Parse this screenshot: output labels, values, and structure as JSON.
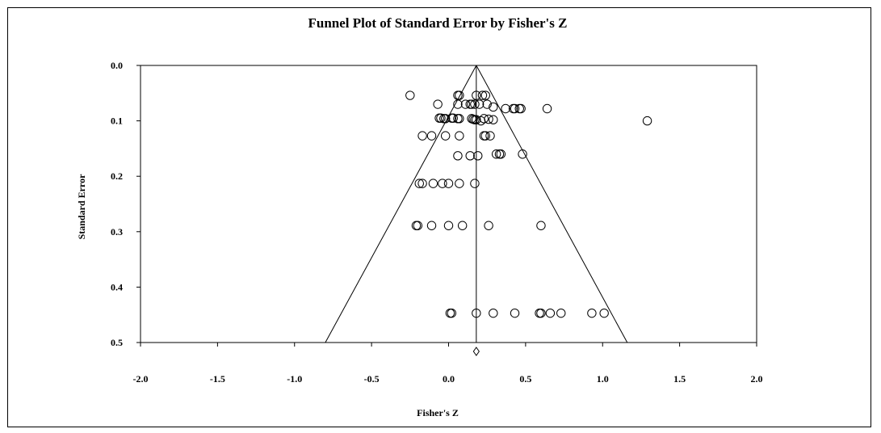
{
  "chart_data": {
    "type": "scatter",
    "title": "Funnel Plot of Standard Error by Fisher's Z",
    "xlabel": "Fisher's Z",
    "ylabel": "Standard Error",
    "xlim": [
      -2.0,
      2.0
    ],
    "ylim": [
      0.0,
      0.5
    ],
    "y_inverted": true,
    "x_ticks": [
      "-2.0",
      "-1.5",
      "-1.0",
      "-0.5",
      "0.0",
      "0.5",
      "1.0",
      "1.5",
      "2.0"
    ],
    "y_ticks": [
      "0.0",
      "0.1",
      "0.2",
      "0.3",
      "0.4",
      "0.5"
    ],
    "summary_effect": 0.18,
    "funnel_limits": {
      "apex": [
        0.18,
        0.0
      ],
      "lower_left": [
        -0.8,
        0.5
      ],
      "lower_right": [
        1.16,
        0.5
      ]
    },
    "points": [
      {
        "x": -0.25,
        "y": 0.054
      },
      {
        "x": 0.07,
        "y": 0.054
      },
      {
        "x": 0.06,
        "y": 0.054
      },
      {
        "x": 0.18,
        "y": 0.054
      },
      {
        "x": 0.22,
        "y": 0.054
      },
      {
        "x": 0.24,
        "y": 0.054
      },
      {
        "x": -0.07,
        "y": 0.07
      },
      {
        "x": 0.06,
        "y": 0.07
      },
      {
        "x": 0.11,
        "y": 0.07
      },
      {
        "x": 0.14,
        "y": 0.07
      },
      {
        "x": 0.15,
        "y": 0.07
      },
      {
        "x": 0.17,
        "y": 0.07
      },
      {
        "x": 0.2,
        "y": 0.07
      },
      {
        "x": 0.25,
        "y": 0.07
      },
      {
        "x": 0.29,
        "y": 0.075
      },
      {
        "x": 0.37,
        "y": 0.078
      },
      {
        "x": 0.42,
        "y": 0.078
      },
      {
        "x": 0.43,
        "y": 0.078
      },
      {
        "x": 0.46,
        "y": 0.078
      },
      {
        "x": 0.47,
        "y": 0.078
      },
      {
        "x": 0.64,
        "y": 0.078
      },
      {
        "x": -0.06,
        "y": 0.095
      },
      {
        "x": -0.05,
        "y": 0.095
      },
      {
        "x": -0.03,
        "y": 0.096
      },
      {
        "x": -0.02,
        "y": 0.096
      },
      {
        "x": 0.02,
        "y": 0.095
      },
      {
        "x": 0.03,
        "y": 0.095
      },
      {
        "x": 0.06,
        "y": 0.096
      },
      {
        "x": 0.07,
        "y": 0.096
      },
      {
        "x": 0.15,
        "y": 0.096
      },
      {
        "x": 0.16,
        "y": 0.097
      },
      {
        "x": 0.17,
        "y": 0.098
      },
      {
        "x": 0.18,
        "y": 0.098
      },
      {
        "x": 0.21,
        "y": 0.1
      },
      {
        "x": 0.23,
        "y": 0.096
      },
      {
        "x": 0.26,
        "y": 0.097
      },
      {
        "x": 0.29,
        "y": 0.098
      },
      {
        "x": 1.29,
        "y": 0.1
      },
      {
        "x": -0.17,
        "y": 0.127
      },
      {
        "x": -0.11,
        "y": 0.127
      },
      {
        "x": -0.02,
        "y": 0.127
      },
      {
        "x": 0.07,
        "y": 0.127
      },
      {
        "x": 0.23,
        "y": 0.127
      },
      {
        "x": 0.24,
        "y": 0.127
      },
      {
        "x": 0.27,
        "y": 0.127
      },
      {
        "x": 0.06,
        "y": 0.163
      },
      {
        "x": 0.14,
        "y": 0.163
      },
      {
        "x": 0.19,
        "y": 0.163
      },
      {
        "x": 0.31,
        "y": 0.16
      },
      {
        "x": 0.33,
        "y": 0.16
      },
      {
        "x": 0.34,
        "y": 0.16
      },
      {
        "x": 0.48,
        "y": 0.16
      },
      {
        "x": -0.19,
        "y": 0.213
      },
      {
        "x": -0.17,
        "y": 0.213
      },
      {
        "x": -0.1,
        "y": 0.213
      },
      {
        "x": -0.04,
        "y": 0.213
      },
      {
        "x": 0.0,
        "y": 0.213
      },
      {
        "x": 0.07,
        "y": 0.213
      },
      {
        "x": 0.17,
        "y": 0.213
      },
      {
        "x": -0.21,
        "y": 0.289
      },
      {
        "x": -0.2,
        "y": 0.289
      },
      {
        "x": -0.11,
        "y": 0.289
      },
      {
        "x": 0.0,
        "y": 0.289
      },
      {
        "x": 0.09,
        "y": 0.289
      },
      {
        "x": 0.26,
        "y": 0.289
      },
      {
        "x": 0.6,
        "y": 0.289
      },
      {
        "x": 0.01,
        "y": 0.447
      },
      {
        "x": 0.02,
        "y": 0.447
      },
      {
        "x": 0.18,
        "y": 0.447
      },
      {
        "x": 0.29,
        "y": 0.447
      },
      {
        "x": 0.43,
        "y": 0.447
      },
      {
        "x": 0.59,
        "y": 0.447
      },
      {
        "x": 0.6,
        "y": 0.447
      },
      {
        "x": 0.66,
        "y": 0.447
      },
      {
        "x": 0.73,
        "y": 0.447
      },
      {
        "x": 0.93,
        "y": 0.447
      },
      {
        "x": 1.01,
        "y": 0.447
      }
    ]
  }
}
